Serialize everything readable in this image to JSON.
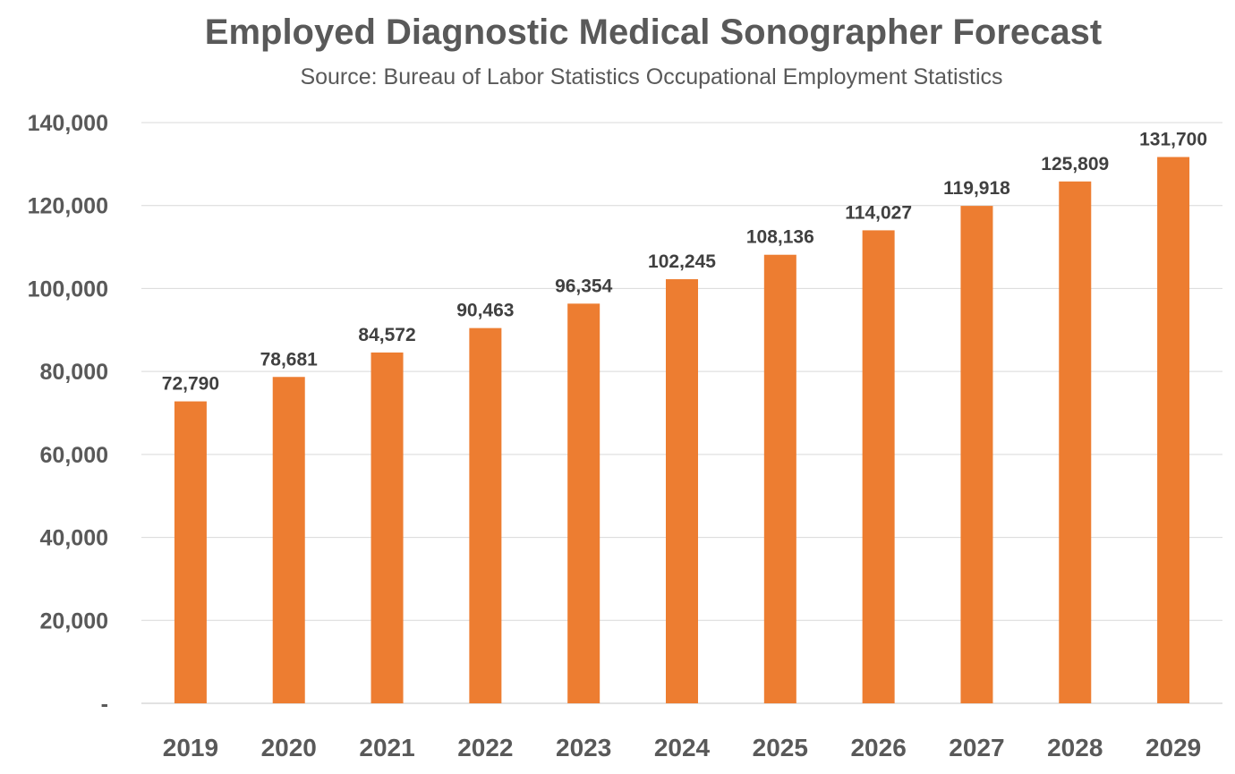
{
  "chart_data": {
    "type": "bar",
    "title": "Employed Diagnostic Medical Sonographer Forecast",
    "subtitle": "Source: Bureau of Labor Statistics Occupational Employment Statistics",
    "categories": [
      "2019",
      "2020",
      "2021",
      "2022",
      "2023",
      "2024",
      "2025",
      "2026",
      "2027",
      "2028",
      "2029"
    ],
    "values": [
      72790,
      78681,
      84572,
      90463,
      96354,
      102245,
      108136,
      114027,
      119918,
      125809,
      131700
    ],
    "data_labels": [
      "72,790",
      "78,681",
      "84,572",
      "90,463",
      "96,354",
      "102,245",
      "108,136",
      "114,027",
      "119,918",
      "125,809",
      "131,700"
    ],
    "ylim": [
      0,
      140000
    ],
    "yticks": [
      0,
      20000,
      40000,
      60000,
      80000,
      100000,
      120000,
      140000
    ],
    "ytick_labels": [
      "-",
      "20,000",
      "40,000",
      "60,000",
      "80,000",
      "100,000",
      "120,000",
      "140,000"
    ],
    "grid": true,
    "legend": "none",
    "bar_color": "#ED7D31",
    "grid_color": "#D9D9D9"
  }
}
